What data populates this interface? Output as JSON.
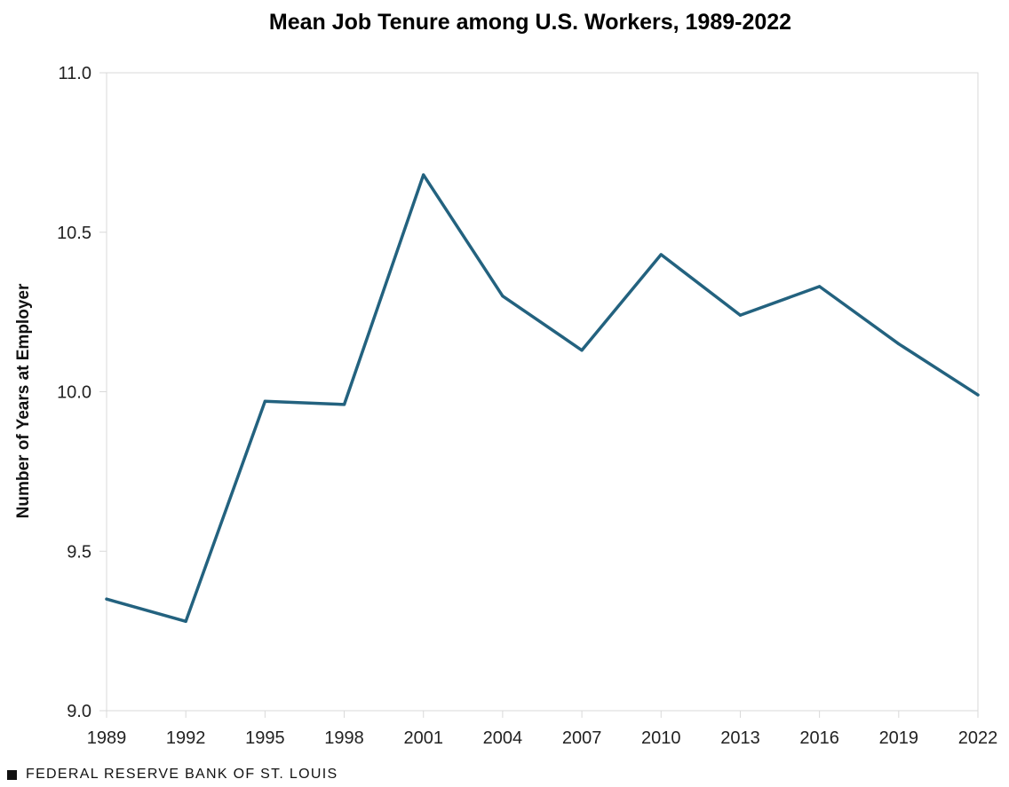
{
  "chart_data": {
    "type": "line",
    "title": "Mean Job Tenure among U.S. Workers, 1989-2022",
    "xlabel": "",
    "ylabel": "Number of Years at Employer",
    "x": [
      "1989",
      "1992",
      "1995",
      "1998",
      "2001",
      "2004",
      "2007",
      "2010",
      "2013",
      "2016",
      "2019",
      "2022"
    ],
    "series": [
      {
        "values": [
          9.35,
          9.28,
          9.97,
          9.96,
          10.68,
          10.3,
          10.13,
          10.43,
          10.24,
          10.33,
          10.15,
          9.99
        ]
      }
    ],
    "ylim": [
      9.0,
      11.0
    ],
    "yticks": [
      "9.0",
      "9.5",
      "10.0",
      "10.5",
      "11.0"
    ],
    "grid": false,
    "legend": "none",
    "line_color": "#23627F",
    "axis_color": "#d9d9d9"
  },
  "footer": {
    "source": "FEDERAL RESERVE BANK OF ST. LOUIS"
  }
}
